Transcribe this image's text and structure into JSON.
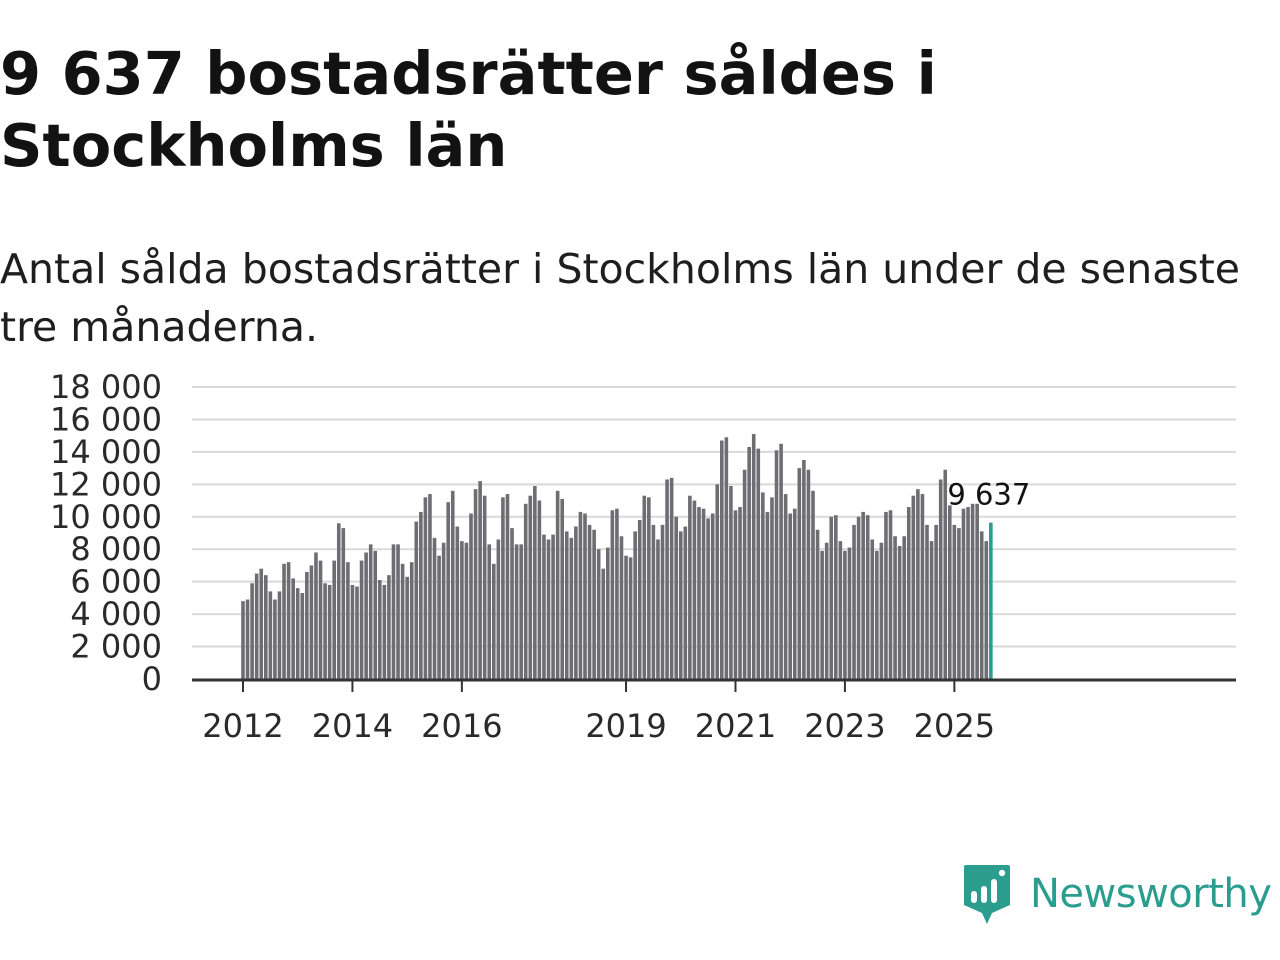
{
  "header": {
    "title": "9 637 bostadsrätter såldes i Stockholms län",
    "subtitle": "Antal sålda bostadsrätter i Stockholms län under de senaste tre månaderna."
  },
  "chart_data": {
    "type": "bar",
    "title": "9 637 bostadsrätter såldes i Stockholms län",
    "subtitle": "Antal sålda bostadsrätter i Stockholms län under de senaste tre månaderna.",
    "xlabel": "",
    "ylabel": "",
    "ylim": [
      0,
      18000
    ],
    "grid": true,
    "y_ticks": [
      0,
      2000,
      4000,
      6000,
      8000,
      10000,
      12000,
      14000,
      16000,
      18000
    ],
    "y_tick_labels": [
      "0",
      "2 000",
      "4 000",
      "6 000",
      "8 000",
      "10 000",
      "12 000",
      "14 000",
      "16 000",
      "18 000"
    ],
    "x_tick_labels": [
      "2012",
      "2014",
      "2016",
      "2019",
      "2021",
      "2023",
      "2025"
    ],
    "x_tick_index": [
      0,
      24,
      48,
      84,
      108,
      132,
      156
    ],
    "highlight_label": "9 637",
    "bar_color": "#6e6d72",
    "highlight_color": "#2a9d8f",
    "values": [
      4800,
      4900,
      5900,
      6500,
      6800,
      6400,
      5400,
      4900,
      5400,
      7100,
      7200,
      6200,
      5600,
      5300,
      6600,
      7000,
      7800,
      7300,
      5900,
      5800,
      7300,
      9600,
      9300,
      7200,
      5800,
      5700,
      7300,
      7800,
      8300,
      7900,
      6100,
      5800,
      6400,
      8300,
      8300,
      7100,
      6300,
      7200,
      9700,
      10300,
      11200,
      11400,
      8700,
      7600,
      8400,
      10900,
      11600,
      9400,
      8500,
      8400,
      10200,
      11700,
      12200,
      11300,
      8300,
      7100,
      8600,
      11200,
      11400,
      9300,
      8300,
      8300,
      10800,
      11300,
      11900,
      11000,
      8900,
      8600,
      8900,
      11600,
      11100,
      9100,
      8700,
      9400,
      10300,
      10200,
      9500,
      9200,
      8000,
      6800,
      8100,
      10400,
      10500,
      8800,
      7600,
      7500,
      9100,
      9800,
      11300,
      11200,
      9500,
      8600,
      9500,
      12300,
      12400,
      10000,
      9100,
      9400,
      11300,
      11000,
      10600,
      10500,
      9900,
      10200,
      12000,
      14700,
      14900,
      11900,
      10400,
      10600,
      12900,
      14300,
      15100,
      14200,
      11500,
      10300,
      11200,
      14100,
      14500,
      11400,
      10200,
      10500,
      13000,
      13500,
      12900,
      11600,
      9200,
      7900,
      8400,
      10000,
      10100,
      8500,
      7900,
      8100,
      9500,
      10000,
      10300,
      10100,
      8600,
      7900,
      8400,
      10300,
      10400,
      8800,
      8200,
      8800,
      10600,
      11300,
      11700,
      11400,
      9500,
      8500,
      9500,
      12300,
      12900,
      10700,
      9500,
      9300,
      10500,
      10600,
      10800,
      10800,
      9100,
      8500,
      9637
    ]
  },
  "brand": {
    "name": "Newsworthy",
    "icon": "newsworthy-logo-icon"
  }
}
